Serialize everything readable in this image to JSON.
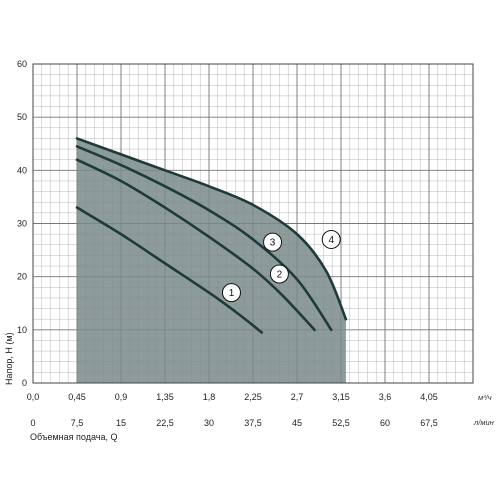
{
  "chart_data": {
    "type": "line",
    "title": "",
    "xlabel": "Объемная подача, Q",
    "ylabel": "Напор, H (м)",
    "x_unit_primary": "м³/ч",
    "x_unit_secondary": "л/мин",
    "xlim": [
      0,
      4.5
    ],
    "ylim": [
      0,
      60
    ],
    "grid": true,
    "x_ticks_primary": [
      "0,0",
      "0,45",
      "0,9",
      "1,35",
      "1,8",
      "2,25",
      "2,7",
      "3,15",
      "3,6",
      "4,05"
    ],
    "x_ticks_primary_values": [
      0,
      0.45,
      0.9,
      1.35,
      1.8,
      2.25,
      2.7,
      3.15,
      3.6,
      4.05
    ],
    "x_ticks_secondary": [
      "0",
      "7,5",
      "15",
      "22,5",
      "30",
      "37,5",
      "45",
      "52,5",
      "60",
      "67,5"
    ],
    "y_ticks": [
      "0",
      "10",
      "20",
      "30",
      "40",
      "50",
      "60"
    ],
    "y_ticks_values": [
      0,
      10,
      20,
      30,
      40,
      50,
      60
    ],
    "series": [
      {
        "label": "1",
        "x": [
          0.45,
          0.9,
          1.35,
          1.8,
          2.1,
          2.34
        ],
        "y": [
          33,
          28,
          22.5,
          17,
          13,
          9.5
        ]
      },
      {
        "label": "2",
        "x": [
          0.45,
          0.9,
          1.35,
          1.8,
          2.25,
          2.55,
          2.88
        ],
        "y": [
          42,
          38,
          33,
          27.5,
          21.5,
          16.5,
          10
        ]
      },
      {
        "label": "3",
        "x": [
          0.45,
          0.9,
          1.35,
          1.8,
          2.25,
          2.7,
          3.05
        ],
        "y": [
          44.5,
          41,
          37,
          32.5,
          27,
          19.5,
          10
        ]
      },
      {
        "label": "4",
        "x": [
          0.45,
          0.9,
          1.35,
          1.8,
          2.25,
          2.7,
          3.0,
          3.2
        ],
        "y": [
          46,
          43,
          40,
          37,
          33.5,
          28,
          21,
          12
        ]
      }
    ],
    "curve_label_positions": [
      {
        "label": "1",
        "x": 2.03,
        "y": 17
      },
      {
        "label": "2",
        "x": 2.52,
        "y": 20.5
      },
      {
        "label": "3",
        "x": 2.45,
        "y": 26.5
      },
      {
        "label": "4",
        "x": 3.05,
        "y": 27
      }
    ],
    "fill_color": "#7a8a8a",
    "curve_color": "#1f3a3a"
  }
}
